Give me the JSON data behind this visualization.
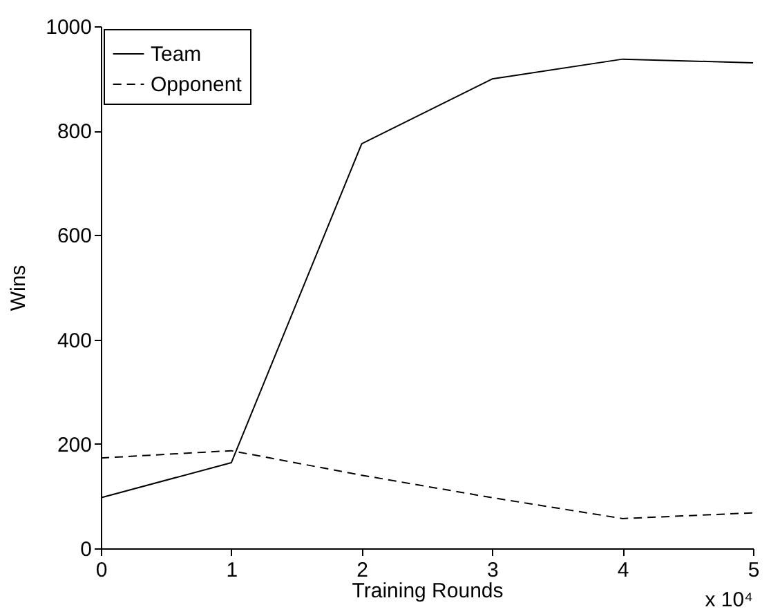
{
  "chart_data": {
    "type": "line",
    "xlabel": "Training Rounds",
    "ylabel": "Wins",
    "x": [
      0,
      1,
      2,
      3,
      4,
      5
    ],
    "series": [
      {
        "name": "Team",
        "color": "#000000",
        "line_style": "solid",
        "values": [
          97,
          164,
          775,
          899,
          937,
          930
        ]
      },
      {
        "name": "Opponent",
        "color": "#000000",
        "line_style": "dashed",
        "values": [
          173,
          187,
          140,
          97,
          57,
          68
        ]
      }
    ],
    "xlim": [
      0,
      5
    ],
    "xticks": [
      0,
      1,
      2,
      3,
      4,
      5
    ],
    "ylim": [
      0,
      1000
    ],
    "yticks": [
      0,
      200,
      400,
      600,
      800,
      1000
    ],
    "legend": "top left",
    "grid": false,
    "marker": "none",
    "annotations": [
      "x 10⁴"
    ]
  }
}
